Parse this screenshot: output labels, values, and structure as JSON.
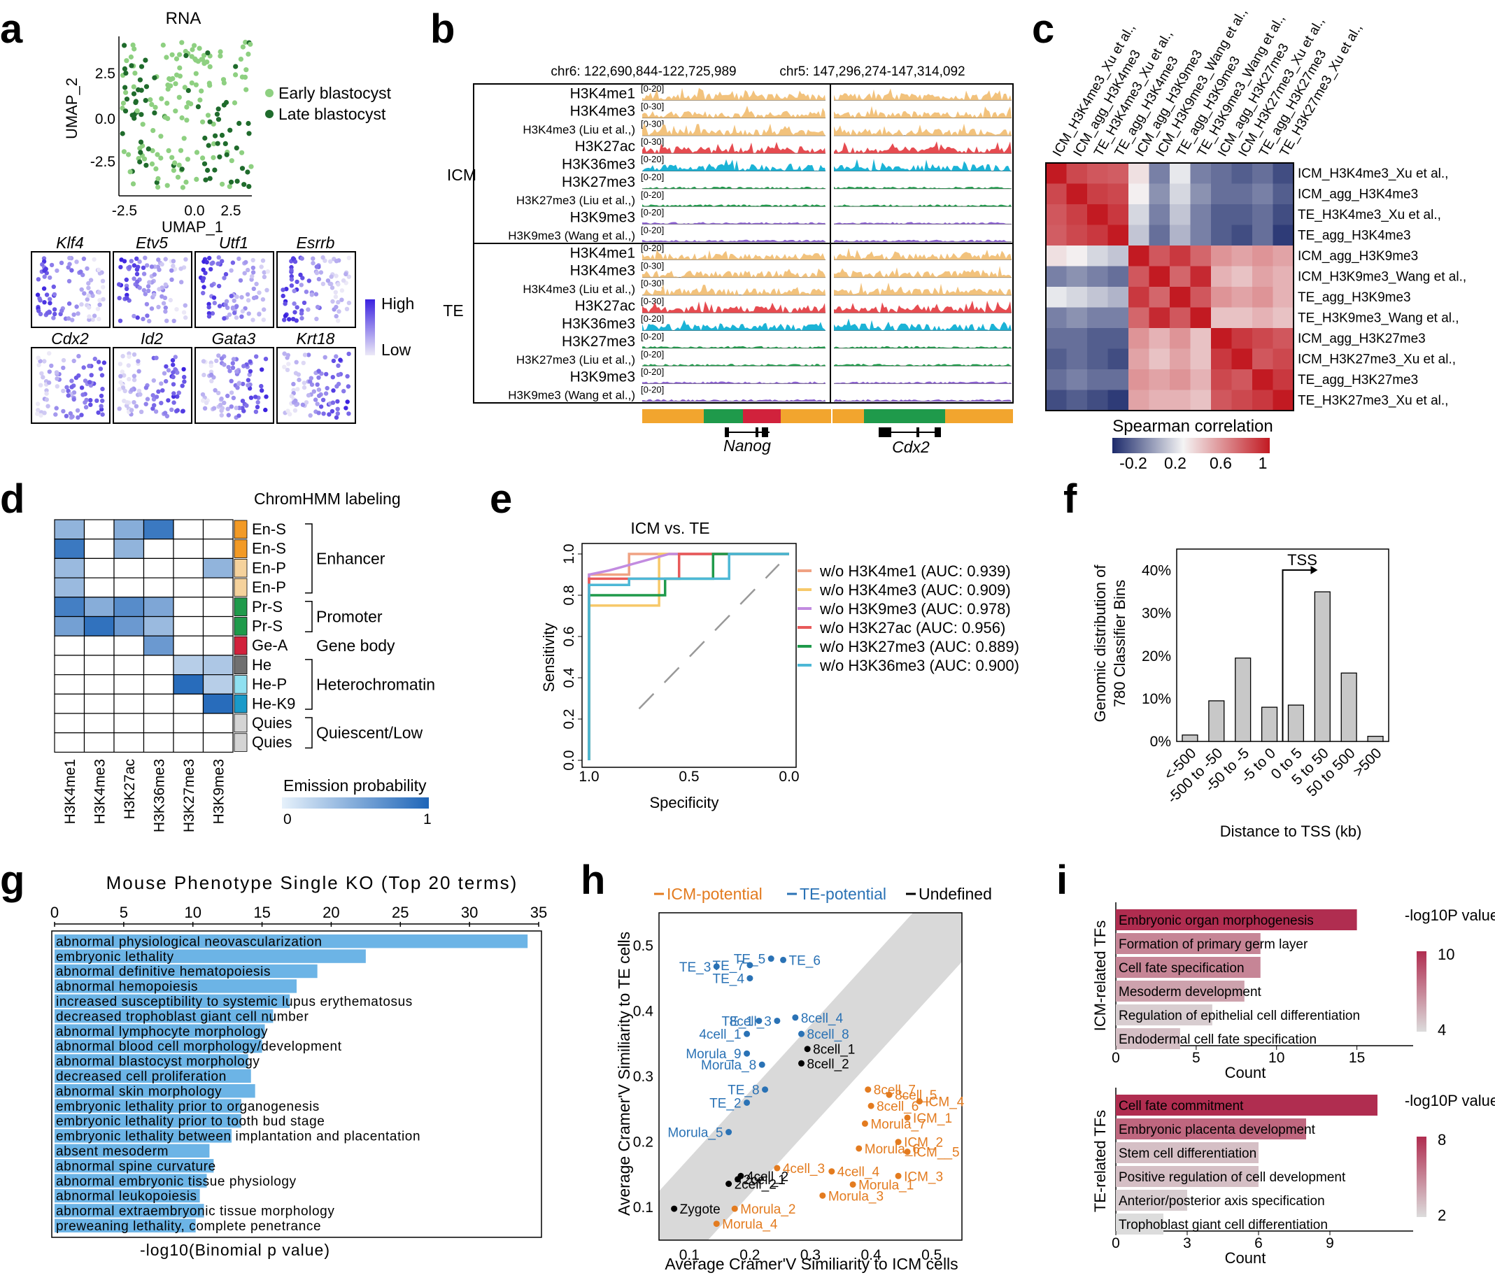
{
  "panel_labels": {
    "a": "a",
    "b": "b",
    "c": "c",
    "d": "d",
    "e": "e",
    "f": "f",
    "g": "g",
    "h": "h",
    "i": "i"
  },
  "panel_a": {
    "title": "RNA",
    "xlabel": "UMAP_1",
    "ylabel": "UMAP_2",
    "xticks": [
      "-2.5",
      "0.0",
      "2.5"
    ],
    "yticks": [
      "2.5",
      "0.0",
      "-2.5"
    ],
    "legend": [
      {
        "label": "Early blastocyst",
        "color": "#8ed081"
      },
      {
        "label": "Late blastocyst",
        "color": "#1f6b2c"
      }
    ],
    "genes": [
      "Klf4",
      "Etv5",
      "Utf1",
      "Esrrb",
      "Cdx2",
      "Id2",
      "Gata3",
      "Krt18"
    ],
    "scale_high": "High",
    "scale_low": "Low"
  },
  "panel_b": {
    "coord1": "chr6: 122,690,844-122,725,989",
    "coord2": "chr5: 147,296,274-147,314,092",
    "groups": [
      "ICM",
      "TE"
    ],
    "tracks": [
      {
        "name": "H3K4me1",
        "range": "[0-20]",
        "color": "#f2c27c"
      },
      {
        "name": "H3K4me3",
        "range": "[0-30]",
        "color": "#f2c27c"
      },
      {
        "name": "H3K4me3 (Liu et al.,)",
        "range": "[0-30]",
        "color": "#f2c27c"
      },
      {
        "name": "H3K27ac",
        "range": "[0-30]",
        "color": "#e64b50"
      },
      {
        "name": "H3K36me3",
        "range": "[0-20]",
        "color": "#1bb3d6"
      },
      {
        "name": "H3K27me3",
        "range": "[0-20]",
        "color": "#1f9a4b"
      },
      {
        "name": "H3K27me3 (Liu et al.,)",
        "range": "[0-20]",
        "color": "#1f9a4b"
      },
      {
        "name": "H3K9me3",
        "range": "[0-20]",
        "color": "#8a5fd1"
      },
      {
        "name": "H3K9me3 (Wang et al.,)",
        "range": "[0-20]",
        "color": "#8a5fd1"
      }
    ],
    "gene1": "Nanog",
    "gene2": "Cdx2"
  },
  "panel_c": {
    "labels": [
      "ICM_H3K4me3_Xu et al.,",
      "ICM_agg_H3K4me3",
      "TE_H3K4me3_Xu et al.,",
      "TE_agg_H3K4me3",
      "ICM_agg_H3K9me3",
      "ICM_H3K9me3_Wang et al.,",
      "TE_agg_H3K9me3",
      "TE_H3K9me3_Wang et al.,",
      "ICM_agg_H3K27me3",
      "ICM_H3K27me3_Xu et al.,",
      "TE_agg_H3K27me3",
      "TE_H3K27me3_Xu et al.,"
    ],
    "legend_title": "Spearman correlation",
    "legend_ticks": [
      "-0.2",
      "0.2",
      "0.6",
      "1"
    ],
    "matrix": [
      [
        1.0,
        0.85,
        0.8,
        0.78,
        0.35,
        -0.05,
        0.25,
        -0.05,
        -0.1,
        -0.15,
        -0.1,
        -0.2
      ],
      [
        0.85,
        1.0,
        0.88,
        0.85,
        0.3,
        0.0,
        0.2,
        0.0,
        -0.1,
        -0.1,
        -0.05,
        -0.15
      ],
      [
        0.8,
        0.88,
        1.0,
        0.9,
        0.2,
        -0.05,
        0.15,
        -0.05,
        -0.15,
        -0.15,
        -0.1,
        -0.2
      ],
      [
        0.78,
        0.85,
        0.9,
        1.0,
        0.15,
        -0.1,
        0.1,
        -0.05,
        -0.15,
        -0.2,
        -0.1,
        -0.25
      ],
      [
        0.35,
        0.3,
        0.2,
        0.15,
        1.0,
        0.8,
        0.9,
        0.75,
        0.6,
        0.55,
        0.6,
        0.55
      ],
      [
        -0.05,
        0.0,
        -0.05,
        -0.1,
        0.8,
        1.0,
        0.75,
        0.95,
        0.5,
        0.45,
        0.55,
        0.5
      ],
      [
        0.25,
        0.2,
        0.15,
        0.1,
        0.9,
        0.75,
        1.0,
        0.8,
        0.6,
        0.55,
        0.6,
        0.5
      ],
      [
        -0.05,
        0.0,
        -0.05,
        -0.05,
        0.75,
        0.95,
        0.8,
        1.0,
        0.45,
        0.45,
        0.5,
        0.45
      ],
      [
        -0.1,
        -0.1,
        -0.15,
        -0.15,
        0.6,
        0.5,
        0.6,
        0.45,
        1.0,
        0.9,
        0.85,
        0.8
      ],
      [
        -0.15,
        -0.1,
        -0.15,
        -0.2,
        0.55,
        0.45,
        0.55,
        0.45,
        0.9,
        1.0,
        0.8,
        0.85
      ],
      [
        -0.1,
        -0.05,
        -0.1,
        -0.1,
        0.6,
        0.55,
        0.6,
        0.5,
        0.85,
        0.8,
        1.0,
        0.9
      ],
      [
        -0.2,
        -0.15,
        -0.2,
        -0.25,
        0.55,
        0.5,
        0.5,
        0.45,
        0.8,
        0.85,
        0.9,
        1.0
      ]
    ]
  },
  "panel_d": {
    "title": "ChromHMM labeling",
    "marks": [
      "H3K4me1",
      "H3K4me3",
      "H3K27ac",
      "H3K36me3",
      "H3K27me3",
      "H3K9me3"
    ],
    "states": [
      {
        "label": "En-S",
        "color": "#f29a26",
        "values": [
          0.4,
          0,
          0.45,
          0.85,
          0,
          0
        ]
      },
      {
        "label": "En-S",
        "color": "#f29a26",
        "values": [
          0.85,
          0,
          0.4,
          0,
          0,
          0
        ]
      },
      {
        "label": "En-P",
        "color": "#f5d29c",
        "values": [
          0.35,
          0,
          0,
          0,
          0,
          0.4
        ]
      },
      {
        "label": "En-P",
        "color": "#f5d29c",
        "values": [
          0.35,
          0,
          0,
          0,
          0,
          0
        ]
      },
      {
        "label": "Pr-S",
        "color": "#1f9a4b",
        "values": [
          0.8,
          0.45,
          0.7,
          0.5,
          0,
          0
        ]
      },
      {
        "label": "Pr-S",
        "color": "#1f9a4b",
        "values": [
          0.55,
          0.9,
          0.6,
          0.35,
          0,
          0
        ]
      },
      {
        "label": "Ge-A",
        "color": "#d1223c",
        "values": [
          0,
          0,
          0,
          0.6,
          0,
          0
        ]
      },
      {
        "label": "He",
        "color": "#707070",
        "values": [
          0,
          0,
          0,
          0,
          0.2,
          0.25
        ]
      },
      {
        "label": "He-P",
        "color": "#8fe0f0",
        "values": [
          0,
          0,
          0,
          0,
          0.95,
          0.2
        ]
      },
      {
        "label": "He-K9",
        "color": "#1a9ac9",
        "values": [
          0,
          0,
          0,
          0,
          0,
          0.95
        ]
      },
      {
        "label": "Quies",
        "color": "#d4d4d4",
        "values": [
          0,
          0,
          0,
          0,
          0,
          0
        ]
      },
      {
        "label": "Quies",
        "color": "#d4d4d4",
        "values": [
          0,
          0,
          0,
          0,
          0,
          0
        ]
      }
    ],
    "groups": [
      "Enhancer",
      "Promoter",
      "Gene body",
      "Heterochromatin",
      "Quiescent/Low"
    ],
    "legend_title": "Emission probability",
    "legend_min": "0",
    "legend_max": "1"
  },
  "chart_data": [
    {
      "type": "line",
      "panel": "e",
      "title": "ICM vs. TE",
      "xlabel": "Specificity",
      "ylabel": "Sensitivity",
      "xticks": [
        "1.0",
        "0.5",
        "0.0"
      ],
      "yticks": [
        "0.0",
        "0.2",
        "0.4",
        "0.6",
        "0.8",
        "1.0"
      ],
      "series": [
        {
          "name": "w/o H3K4me1 (AUC: 0.939)",
          "color": "#f0a283",
          "points": [
            [
              1,
              0
            ],
            [
              1,
              0.9
            ],
            [
              0.8,
              0.9
            ],
            [
              0.8,
              1
            ],
            [
              0,
              1
            ]
          ]
        },
        {
          "name": "w/o H3K4me3 (AUC: 0.909)",
          "color": "#f7c96a",
          "points": [
            [
              1,
              0
            ],
            [
              1,
              0.75
            ],
            [
              0.65,
              0.75
            ],
            [
              0.65,
              1
            ],
            [
              0,
              1
            ]
          ]
        },
        {
          "name": "w/o H3K9me3 (AUC: 0.978)",
          "color": "#c28be0",
          "points": [
            [
              1,
              0
            ],
            [
              1,
              0.9
            ],
            [
              0.9,
              0.92
            ],
            [
              0.6,
              1
            ],
            [
              0,
              1
            ]
          ]
        },
        {
          "name": "w/o H3K27ac (AUC: 0.956)",
          "color": "#e85a5a",
          "points": [
            [
              1,
              0
            ],
            [
              1,
              0.88
            ],
            [
              0.55,
              0.88
            ],
            [
              0.55,
              1
            ],
            [
              0,
              1
            ]
          ]
        },
        {
          "name": "w/o H3K27me3 (AUC: 0.889)",
          "color": "#1f9a4b",
          "points": [
            [
              1,
              0
            ],
            [
              1,
              0.8
            ],
            [
              0.62,
              0.8
            ],
            [
              0.62,
              0.88
            ],
            [
              0.38,
              0.88
            ],
            [
              0.38,
              1
            ],
            [
              0,
              1
            ]
          ]
        },
        {
          "name": "w/o H3K36me3 (AUC: 0.900)",
          "color": "#4db8d6",
          "points": [
            [
              1,
              0
            ],
            [
              1,
              0.85
            ],
            [
              0.8,
              0.85
            ],
            [
              0.8,
              0.88
            ],
            [
              0.3,
              0.88
            ],
            [
              0.3,
              1
            ],
            [
              0,
              1
            ]
          ]
        }
      ]
    },
    {
      "type": "bar",
      "panel": "f",
      "title": "TSS",
      "xlabel": "Distance to TSS (kb)",
      "ylabel": "Genomic distribution of 780 Classifier Bins",
      "categories": [
        "<-500",
        "-500 to -50",
        "-50 to -5",
        "-5 to 0",
        "0 to 5",
        "5 to 50",
        "50 to 500",
        ">500"
      ],
      "values": [
        1.5,
        9.5,
        19.5,
        8,
        8.5,
        35,
        16,
        1.2
      ],
      "yticks": [
        "0%",
        "10%",
        "20%",
        "30%",
        "40%"
      ],
      "ylim": [
        0,
        45
      ]
    },
    {
      "type": "bar",
      "panel": "g",
      "title": "Mouse Phenotype Single KO (Top 20 terms)",
      "xlabel": "-log10(Binomial p value)",
      "xticks": [
        "0",
        "5",
        "10",
        "15",
        "20",
        "25",
        "30",
        "35"
      ],
      "xlim": [
        0,
        35
      ],
      "categories": [
        "abnormal physiological neovascularization",
        "embryonic lethality",
        "abnormal definitive hematopoiesis",
        "abnormal hemopoiesis",
        "increased susceptibility to systemic lupus erythematosus",
        "decreased trophoblast giant cell number",
        "abnormal lymphocyte morphology",
        "abnormal blood cell morphology/development",
        "abnormal blastocyst morphology",
        "decreased cell proliferation",
        "abnormal skin morphology",
        "embryonic lethality prior to organogenesis",
        "embryonic lethality prior to tooth bud stage",
        "embryonic lethality between implantation and placentation",
        "absent mesoderm",
        "abnormal spine curvature",
        "abnormal embryonic tissue physiology",
        "abnormal leukopoiesis",
        "abnormal extraembryonic tissue morphology",
        "preweaning lethality, complete penetrance"
      ],
      "values": [
        34.2,
        22.5,
        19,
        17.5,
        17,
        15.8,
        15.2,
        15,
        14,
        14.2,
        14.5,
        13.5,
        13.5,
        12.8,
        11.2,
        11.5,
        11,
        10.5,
        10.8,
        10.2
      ]
    },
    {
      "type": "scatter",
      "panel": "h",
      "xlabel": "Average Cramer'V Similiarity to ICM cells",
      "ylabel": "Average Cramer'V Similiarity to TE cells",
      "xticks": [
        "0.1",
        "0.2",
        "0.3",
        "0.4",
        "0.5"
      ],
      "yticks": [
        "0.1",
        "0.2",
        "0.3",
        "0.4",
        "0.5"
      ],
      "xlim": [
        0.05,
        0.55
      ],
      "ylim": [
        0.05,
        0.55
      ],
      "legend": [
        {
          "label": "ICM-potential",
          "color": "#e37b1f"
        },
        {
          "label": "TE-potential",
          "color": "#2a72b5"
        },
        {
          "label": "Undefined",
          "color": "#000000"
        }
      ],
      "points": [
        {
          "label": "TE_7",
          "x": 0.2,
          "y": 0.47,
          "group": "TE-potential"
        },
        {
          "label": "TE_5",
          "x": 0.235,
          "y": 0.48,
          "group": "TE-potential"
        },
        {
          "label": "TE_3",
          "x": 0.145,
          "y": 0.468,
          "group": "TE-potential"
        },
        {
          "label": "TE_6",
          "x": 0.255,
          "y": 0.478,
          "group": "TE-potential"
        },
        {
          "label": "TE_4",
          "x": 0.2,
          "y": 0.45,
          "group": "TE-potential"
        },
        {
          "label": "TE_1",
          "x": 0.215,
          "y": 0.385,
          "group": "TE-potential"
        },
        {
          "label": "8cell_3",
          "x": 0.245,
          "y": 0.385,
          "group": "TE-potential"
        },
        {
          "label": "8cell_4",
          "x": 0.275,
          "y": 0.39,
          "group": "TE-potential"
        },
        {
          "label": "4cell_1",
          "x": 0.195,
          "y": 0.365,
          "group": "TE-potential"
        },
        {
          "label": "8cell_8",
          "x": 0.285,
          "y": 0.365,
          "group": "TE-potential"
        },
        {
          "label": "Morula_9",
          "x": 0.195,
          "y": 0.335,
          "group": "TE-potential"
        },
        {
          "label": "Morula_8",
          "x": 0.22,
          "y": 0.318,
          "group": "TE-potential"
        },
        {
          "label": "TE_8",
          "x": 0.225,
          "y": 0.28,
          "group": "TE-potential"
        },
        {
          "label": "TE_2",
          "x": 0.195,
          "y": 0.26,
          "group": "TE-potential"
        },
        {
          "label": "Morula_5",
          "x": 0.165,
          "y": 0.215,
          "group": "TE-potential"
        },
        {
          "label": "8cell_1",
          "x": 0.295,
          "y": 0.342,
          "group": "Undefined"
        },
        {
          "label": "8cell_2",
          "x": 0.285,
          "y": 0.32,
          "group": "Undefined"
        },
        {
          "label": "4cell_2",
          "x": 0.185,
          "y": 0.148,
          "group": "Undefined"
        },
        {
          "label": "2cell_1",
          "x": 0.18,
          "y": 0.143,
          "group": "Undefined"
        },
        {
          "label": "2cell_2",
          "x": 0.165,
          "y": 0.136,
          "group": "Undefined"
        },
        {
          "label": "Zygote",
          "x": 0.075,
          "y": 0.098,
          "group": "Undefined"
        },
        {
          "label": "8cell_7",
          "x": 0.395,
          "y": 0.28,
          "group": "ICM-potential"
        },
        {
          "label": "8cell_5",
          "x": 0.43,
          "y": 0.272,
          "group": "ICM-potential"
        },
        {
          "label": "8cell_6",
          "x": 0.4,
          "y": 0.255,
          "group": "ICM-potential"
        },
        {
          "label": "ICM_4",
          "x": 0.48,
          "y": 0.262,
          "group": "ICM-potential"
        },
        {
          "label": "Morula_7",
          "x": 0.39,
          "y": 0.228,
          "group": "ICM-potential"
        },
        {
          "label": "ICM_1",
          "x": 0.46,
          "y": 0.237,
          "group": "ICM-potential"
        },
        {
          "label": "ICM_2",
          "x": 0.445,
          "y": 0.2,
          "group": "ICM-potential"
        },
        {
          "label": "ICM__5",
          "x": 0.46,
          "y": 0.185,
          "group": "ICM-potential"
        },
        {
          "label": "Morula_6",
          "x": 0.38,
          "y": 0.19,
          "group": "ICM-potential"
        },
        {
          "label": "4cell_3",
          "x": 0.245,
          "y": 0.16,
          "group": "ICM-potential"
        },
        {
          "label": "4cell_4",
          "x": 0.335,
          "y": 0.155,
          "group": "ICM-potential"
        },
        {
          "label": "ICM_3",
          "x": 0.445,
          "y": 0.148,
          "group": "ICM-potential"
        },
        {
          "label": "Morula_1",
          "x": 0.37,
          "y": 0.135,
          "group": "ICM-potential"
        },
        {
          "label": "Morula_3",
          "x": 0.32,
          "y": 0.118,
          "group": "ICM-potential"
        },
        {
          "label": "Morula_2",
          "x": 0.175,
          "y": 0.098,
          "group": "ICM-potential"
        },
        {
          "label": "Morula_4",
          "x": 0.145,
          "y": 0.075,
          "group": "ICM-potential"
        }
      ]
    },
    {
      "type": "bar",
      "panel": "i-top",
      "ylabel": "ICM-related TFs",
      "xlabel": "Count",
      "xticks": [
        "0",
        "5",
        "10",
        "15"
      ],
      "xlim": [
        0,
        18.5
      ],
      "legend_title": "-log10P value",
      "legend_ticks": [
        "10",
        "4"
      ],
      "categories": [
        "Embryonic organ morphogenesis",
        "Formation of primary germ layer",
        "Cell fate specification",
        "Mesoderm development",
        "Regulation of epithelial cell differentiation",
        "Endodermal cell fate specification"
      ],
      "values": [
        15,
        9,
        9,
        8,
        6,
        4
      ],
      "pvalues": [
        10,
        7,
        7,
        6,
        4.5,
        5
      ]
    },
    {
      "type": "bar",
      "panel": "i-bottom",
      "ylabel": "TE-related TFs",
      "xlabel": "Count",
      "xticks": [
        "0",
        "3",
        "6",
        "9"
      ],
      "xlim": [
        0,
        12.5
      ],
      "legend_title": "-log10P value",
      "legend_ticks": [
        "8",
        "2"
      ],
      "categories": [
        "Cell fate commitment",
        "Embryonic placenta development",
        "Stem cell differentiation",
        "Positive regulation of cell development",
        "Anterior/posterior axis specification",
        "Trophoblast giant cell differentiation"
      ],
      "values": [
        11,
        8,
        6,
        6,
        3,
        2
      ],
      "pvalues": [
        8,
        6,
        3,
        3,
        2.5,
        2
      ]
    }
  ]
}
